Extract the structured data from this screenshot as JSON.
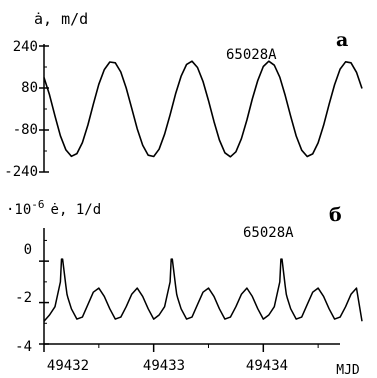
{
  "chart_data": [
    {
      "type": "line",
      "panel_letter": "а",
      "ylabel": "ȧ, m/d",
      "annotation": "65028A",
      "xlim": [
        49432,
        49434.9
      ],
      "ylim": [
        -240,
        240
      ],
      "yticks": [
        -240,
        -80,
        80,
        240
      ],
      "ytick_labels": [
        "-240",
        "-80",
        "80",
        "240"
      ],
      "series": [
        {
          "x": [
            49432.0,
            49432.05,
            49432.1,
            49432.15,
            49432.2,
            49432.25,
            49432.3,
            49432.35,
            49432.4,
            49432.45,
            49432.5,
            49432.55,
            49432.6,
            49432.65,
            49432.7,
            49432.75,
            49432.8,
            49432.85,
            49432.9,
            49432.95,
            49433.0,
            49433.05,
            49433.1,
            49433.15,
            49433.2,
            49433.25,
            49433.3,
            49433.35,
            49433.4,
            49433.45,
            49433.5,
            49433.55,
            49433.6,
            49433.65,
            49433.7,
            49433.75,
            49433.8,
            49433.85,
            49433.9,
            49433.95,
            49434.0,
            49434.05,
            49434.1,
            49434.15,
            49434.2,
            49434.25,
            49434.3,
            49434.35,
            49434.4,
            49434.45,
            49434.5,
            49434.55,
            49434.6,
            49434.65,
            49434.7,
            49434.75,
            49434.8,
            49434.85,
            49434.9
          ],
          "y": [
            120,
            54,
            -27,
            -102,
            -156,
            -180,
            -170,
            -128,
            -61,
            18,
            94,
            150,
            179,
            176,
            141,
            80,
            3,
            -75,
            -138,
            -176,
            -181,
            -153,
            -96,
            -22,
            58,
            125,
            170,
            182,
            158,
            105,
            32,
            -48,
            -118,
            -167,
            -182,
            -163,
            -113,
            -42,
            38,
            109,
            162,
            182,
            167,
            121,
            52,
            -28,
            -103,
            -157,
            -181,
            -171,
            -129,
            -62,
            18,
            93,
            152,
            180,
            176,
            140,
            78
          ]
        }
      ]
    },
    {
      "type": "line",
      "panel_letter": "б",
      "ylabel_scale": "·10",
      "ylabel_exp": "-6",
      "ylabel": "ė, 1/d",
      "annotation": "65028A",
      "xlabel": "MJD",
      "xlim": [
        49432,
        49434.9
      ],
      "ylim": [
        -4,
        1.6
      ],
      "yticks": [
        -4,
        -2,
        0
      ],
      "ytick_labels": [
        "-4",
        "-2",
        "0"
      ],
      "xticks": [
        49432,
        49433,
        49434
      ],
      "xtick_labels": [
        "49432",
        "49433",
        "49434"
      ],
      "series": [
        {
          "x": [
            49432.0,
            49432.05,
            49432.1,
            49432.15,
            49432.16,
            49432.17,
            49432.2,
            49432.21,
            49432.22,
            49432.25,
            49432.3,
            49432.35,
            49432.4,
            49432.45,
            49432.5,
            49432.55,
            49432.6,
            49432.65,
            49432.7,
            49432.75,
            49432.8,
            49432.85,
            49432.9,
            49432.95,
            49433.0,
            49433.05,
            49433.1,
            49433.15,
            49433.16,
            49433.17,
            49433.2,
            49433.21,
            49433.22,
            49433.25,
            49433.3,
            49433.35,
            49433.4,
            49433.45,
            49433.5,
            49433.55,
            49433.6,
            49433.65,
            49433.7,
            49433.75,
            49433.8,
            49433.85,
            49433.9,
            49433.95,
            49434.0,
            49434.05,
            49434.1,
            49434.15,
            49434.16,
            49434.17,
            49434.2,
            49434.21,
            49434.22,
            49434.25,
            49434.3,
            49434.35,
            49434.4,
            49434.45,
            49434.5,
            49434.55,
            49434.6,
            49434.65,
            49434.7,
            49434.75,
            49434.8,
            49434.85,
            49434.9
          ],
          "y": [
            -2.9,
            -2.6,
            -2.2,
            -1.0,
            0.1,
            0.1,
            -1.2,
            -1.6,
            -1.8,
            -2.3,
            -2.8,
            -2.7,
            -2.1,
            -1.5,
            -1.3,
            -1.7,
            -2.3,
            -2.8,
            -2.7,
            -2.2,
            -1.6,
            -1.3,
            -1.7,
            -2.3,
            -2.8,
            -2.6,
            -2.2,
            -1.0,
            0.1,
            0.1,
            -1.2,
            -1.6,
            -1.8,
            -2.3,
            -2.8,
            -2.7,
            -2.1,
            -1.5,
            -1.3,
            -1.7,
            -2.3,
            -2.8,
            -2.7,
            -2.2,
            -1.6,
            -1.3,
            -1.7,
            -2.3,
            -2.8,
            -2.6,
            -2.2,
            -1.0,
            0.1,
            0.1,
            -1.2,
            -1.6,
            -1.8,
            -2.3,
            -2.8,
            -2.7,
            -2.1,
            -1.5,
            -1.3,
            -1.7,
            -2.3,
            -2.8,
            -2.7,
            -2.2,
            -1.6,
            -1.3,
            -2.9
          ]
        }
      ]
    }
  ]
}
